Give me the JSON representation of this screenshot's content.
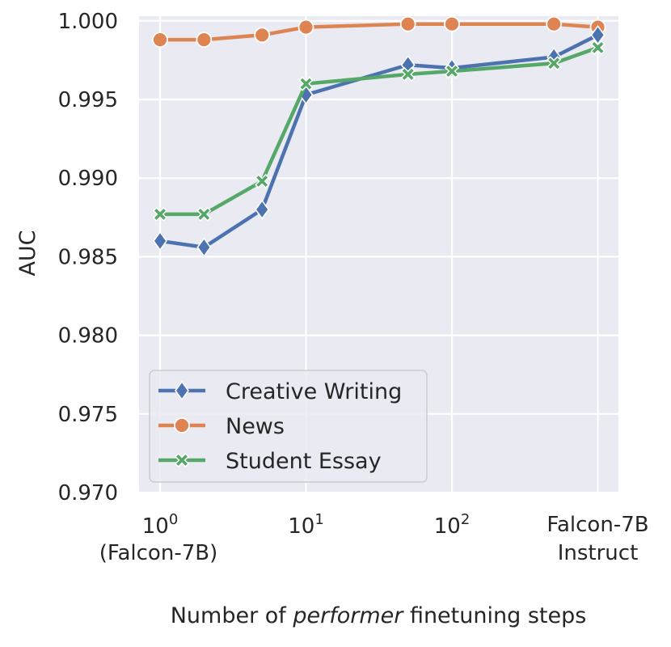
{
  "chart_data": {
    "type": "line",
    "title": "",
    "ylabel": "AUC",
    "xlabel": {
      "prefix": "Number of ",
      "emphasis": "performer",
      "suffix": " finetuning steps"
    },
    "xscale": "log",
    "ylim": [
      0.97,
      1.0005
    ],
    "yticks": [
      "0.970",
      "0.975",
      "0.980",
      "0.985",
      "0.990",
      "0.995",
      "1.000"
    ],
    "xticks": [
      {
        "value": 1,
        "base": "10",
        "exp": "0",
        "sub": "(Falcon-7B)"
      },
      {
        "value": 10,
        "base": "10",
        "exp": "1",
        "sub": ""
      },
      {
        "value": 100,
        "base": "10",
        "exp": "2",
        "sub": ""
      },
      {
        "value": 1000,
        "line1": "Falcon-7B",
        "line2": "Instruct"
      }
    ],
    "x": [
      1,
      2,
      5,
      10,
      50,
      100,
      500,
      1000
    ],
    "series": [
      {
        "name": "Creative Writing",
        "color": "#4c72b0",
        "marker": "diamond",
        "values": [
          0.986,
          0.9856,
          0.988,
          0.9953,
          0.9972,
          0.997,
          0.9977,
          0.9991
        ]
      },
      {
        "name": "News",
        "color": "#dd8452",
        "marker": "circle",
        "values": [
          0.9988,
          0.9988,
          0.9991,
          0.9996,
          0.9998,
          0.9998,
          0.9998,
          0.9996
        ]
      },
      {
        "name": "Student Essay",
        "color": "#55a868",
        "marker": "x",
        "values": [
          0.9877,
          0.9877,
          0.9898,
          0.996,
          0.9966,
          0.9968,
          0.9973,
          0.9983
        ]
      }
    ],
    "grid": true,
    "legend_position": "lower-left",
    "background": "#eaeaf2"
  }
}
